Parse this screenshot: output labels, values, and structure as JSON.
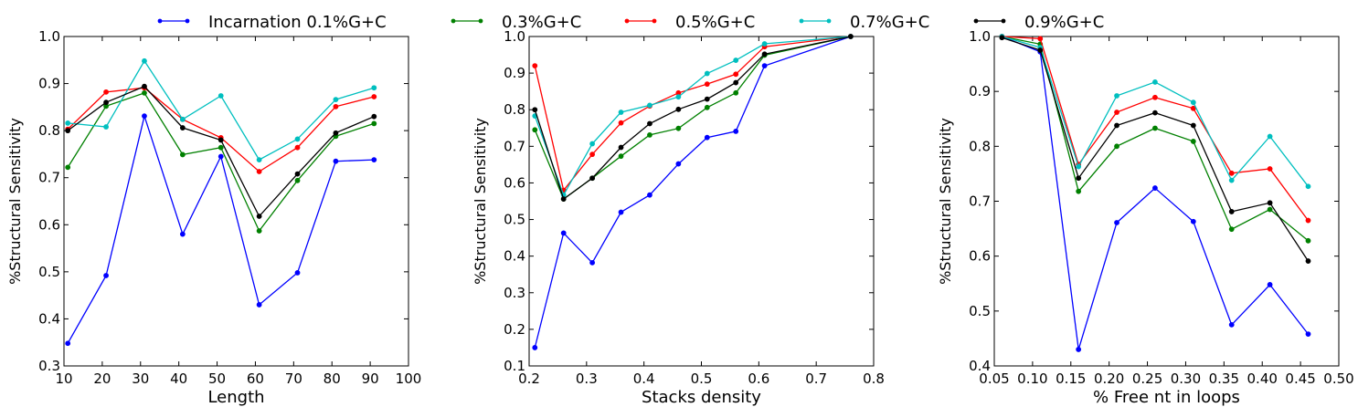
{
  "legend": [
    {
      "name": "Incarnation  0.1%G+C",
      "color": "#0000ff"
    },
    {
      "name": "0.3%G+C",
      "color": "#008000"
    },
    {
      "name": "0.5%G+C",
      "color": "#ff0000"
    },
    {
      "name": "0.7%G+C",
      "color": "#00bfbf"
    },
    {
      "name": "0.9%G+C",
      "color": "#000000"
    }
  ],
  "chart_data": [
    {
      "type": "line",
      "xlabel": "Length",
      "ylabel": "%Structural Sensitivity",
      "xlim": [
        10,
        100
      ],
      "ylim": [
        0.3,
        1.0
      ],
      "xticks": [
        "10",
        "20",
        "30",
        "40",
        "50",
        "60",
        "70",
        "80",
        "90",
        "100"
      ],
      "yticks": [
        "0.3",
        "0.4",
        "0.5",
        "0.6",
        "0.7",
        "0.8",
        "0.9",
        "1.0"
      ],
      "x": [
        11,
        21,
        31,
        41,
        51,
        61,
        71,
        81,
        91
      ],
      "series": [
        {
          "name": "Incarnation  0.1%G+C",
          "color": "#0000ff",
          "values": [
            0.348,
            0.492,
            0.831,
            0.58,
            0.745,
            0.43,
            0.498,
            0.735,
            0.738
          ]
        },
        {
          "name": "0.3%G+C",
          "color": "#008000",
          "values": [
            0.722,
            0.852,
            0.88,
            0.749,
            0.764,
            0.587,
            0.694,
            0.788,
            0.815
          ]
        },
        {
          "name": "0.5%G+C",
          "color": "#ff0000",
          "values": [
            0.803,
            0.882,
            0.891,
            0.824,
            0.785,
            0.713,
            0.764,
            0.851,
            0.872
          ]
        },
        {
          "name": "0.7%G+C",
          "color": "#00bfbf",
          "values": [
            0.816,
            0.808,
            0.948,
            0.824,
            0.874,
            0.738,
            0.782,
            0.866,
            0.891
          ]
        },
        {
          "name": "0.9%G+C",
          "color": "#000000",
          "values": [
            0.8,
            0.86,
            0.894,
            0.806,
            0.78,
            0.618,
            0.708,
            0.795,
            0.83
          ]
        }
      ]
    },
    {
      "type": "line",
      "xlabel": "Stacks density",
      "ylabel": "%Structural Sensitivity",
      "xlim": [
        0.2,
        0.8
      ],
      "ylim": [
        0.1,
        1.0
      ],
      "xticks": [
        "0.2",
        "0.3",
        "0.4",
        "0.5",
        "0.6",
        "0.7",
        "0.8"
      ],
      "yticks": [
        "0.1",
        "0.2",
        "0.3",
        "0.4",
        "0.5",
        "0.6",
        "0.7",
        "0.8",
        "0.9",
        "1.0"
      ],
      "x": [
        0.21,
        0.26,
        0.31,
        0.36,
        0.41,
        0.46,
        0.51,
        0.56,
        0.61,
        0.76
      ],
      "series": [
        {
          "name": "Incarnation  0.1%G+C",
          "color": "#0000ff",
          "values": [
            0.15,
            0.463,
            0.382,
            0.52,
            0.567,
            0.652,
            0.724,
            0.741,
            0.92,
            1.0
          ]
        },
        {
          "name": "0.3%G+C",
          "color": "#008000",
          "values": [
            0.745,
            0.556,
            0.613,
            0.673,
            0.731,
            0.749,
            0.806,
            0.846,
            0.949,
            1.0
          ]
        },
        {
          "name": "0.5%G+C",
          "color": "#ff0000",
          "values": [
            0.92,
            0.58,
            0.678,
            0.764,
            0.81,
            0.846,
            0.87,
            0.897,
            0.972,
            1.0
          ]
        },
        {
          "name": "0.7%G+C",
          "color": "#00bfbf",
          "values": [
            0.783,
            0.567,
            0.707,
            0.793,
            0.812,
            0.835,
            0.899,
            0.935,
            0.98,
            1.0
          ]
        },
        {
          "name": "0.9%G+C",
          "color": "#000000",
          "values": [
            0.8,
            0.556,
            0.613,
            0.697,
            0.762,
            0.801,
            0.829,
            0.874,
            0.952,
            1.0
          ]
        }
      ]
    },
    {
      "type": "line",
      "xlabel": "% Free nt in loops",
      "ylabel": "%Structural Sensitivity",
      "xlim": [
        0.05,
        0.5
      ],
      "ylim": [
        0.4,
        1.0
      ],
      "xticks": [
        "0.05",
        "0.10",
        "0.15",
        "0.20",
        "0.25",
        "0.30",
        "0.35",
        "0.40",
        "0.45",
        "0.50"
      ],
      "yticks": [
        "0.4",
        "0.5",
        "0.6",
        "0.7",
        "0.8",
        "0.9",
        "1.0"
      ],
      "x": [
        0.06,
        0.11,
        0.16,
        0.21,
        0.26,
        0.31,
        0.36,
        0.41,
        0.46
      ],
      "series": [
        {
          "name": "Incarnation  0.1%G+C",
          "color": "#0000ff",
          "values": [
            1.0,
            0.972,
            0.43,
            0.661,
            0.724,
            0.663,
            0.475,
            0.548,
            0.458
          ]
        },
        {
          "name": "0.3%G+C",
          "color": "#008000",
          "values": [
            1.0,
            0.986,
            0.718,
            0.8,
            0.833,
            0.809,
            0.649,
            0.685,
            0.628
          ]
        },
        {
          "name": "0.5%G+C",
          "color": "#ff0000",
          "values": [
            1.0,
            0.996,
            0.767,
            0.862,
            0.889,
            0.869,
            0.751,
            0.759,
            0.665
          ]
        },
        {
          "name": "0.7%G+C",
          "color": "#00bfbf",
          "values": [
            1.0,
            0.98,
            0.763,
            0.892,
            0.917,
            0.88,
            0.738,
            0.818,
            0.727
          ]
        },
        {
          "name": "0.9%G+C",
          "color": "#000000",
          "values": [
            0.998,
            0.975,
            0.742,
            0.838,
            0.861,
            0.838,
            0.681,
            0.697,
            0.591
          ]
        }
      ]
    }
  ]
}
